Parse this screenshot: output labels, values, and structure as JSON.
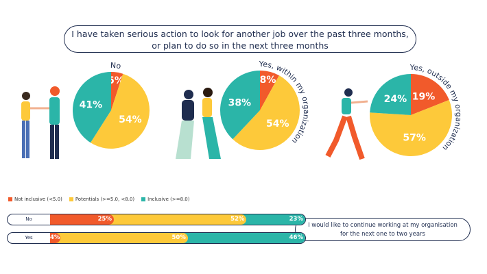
{
  "title": {
    "line1": "I have taken serious action to look for another job over the past three months,",
    "line2": "or plan to do so in the next three months"
  },
  "colors": {
    "not_inclusive": "#f15a2b",
    "potentials": "#fdc93a",
    "inclusive": "#2bb5a8",
    "text": "#1f2d4f"
  },
  "chart_data": [
    {
      "type": "pie",
      "title": "No",
      "slices": [
        {
          "label": "Not inclusive",
          "value": 5
        },
        {
          "label": "Potentials",
          "value": 54
        },
        {
          "label": "Inclusive",
          "value": 41
        }
      ]
    },
    {
      "type": "pie",
      "title": "Yes, within my organization",
      "slices": [
        {
          "label": "Not inclusive",
          "value": 8
        },
        {
          "label": "Potentials",
          "value": 54
        },
        {
          "label": "Inclusive",
          "value": 38
        }
      ]
    },
    {
      "type": "pie",
      "title": "Yes, outside my organization",
      "slices": [
        {
          "label": "Not inclusive",
          "value": 19
        },
        {
          "label": "Potentials",
          "value": 57
        },
        {
          "label": "Inclusive",
          "value": 24
        }
      ]
    },
    {
      "type": "bar",
      "orientation": "horizontal",
      "stacked": true,
      "title": "I would like to continue working at my organisation for the next one to two years",
      "legend": [
        "Not inclusive (<5.0)",
        "Potentials (>=5.0, <8.0)",
        "Inclusive (>=8.0)"
      ],
      "categories": [
        "No",
        "Yes"
      ],
      "series": [
        {
          "name": "Not inclusive (<5.0)",
          "values": [
            25,
            4
          ]
        },
        {
          "name": "Potentials (>=5.0, <8.0)",
          "values": [
            52,
            50
          ]
        },
        {
          "name": "Inclusive (>=8.0)",
          "values": [
            23,
            46
          ]
        }
      ]
    }
  ],
  "caption": {
    "line1": "I would like to continue working at my organisation",
    "line2": "for the next one to two years"
  }
}
